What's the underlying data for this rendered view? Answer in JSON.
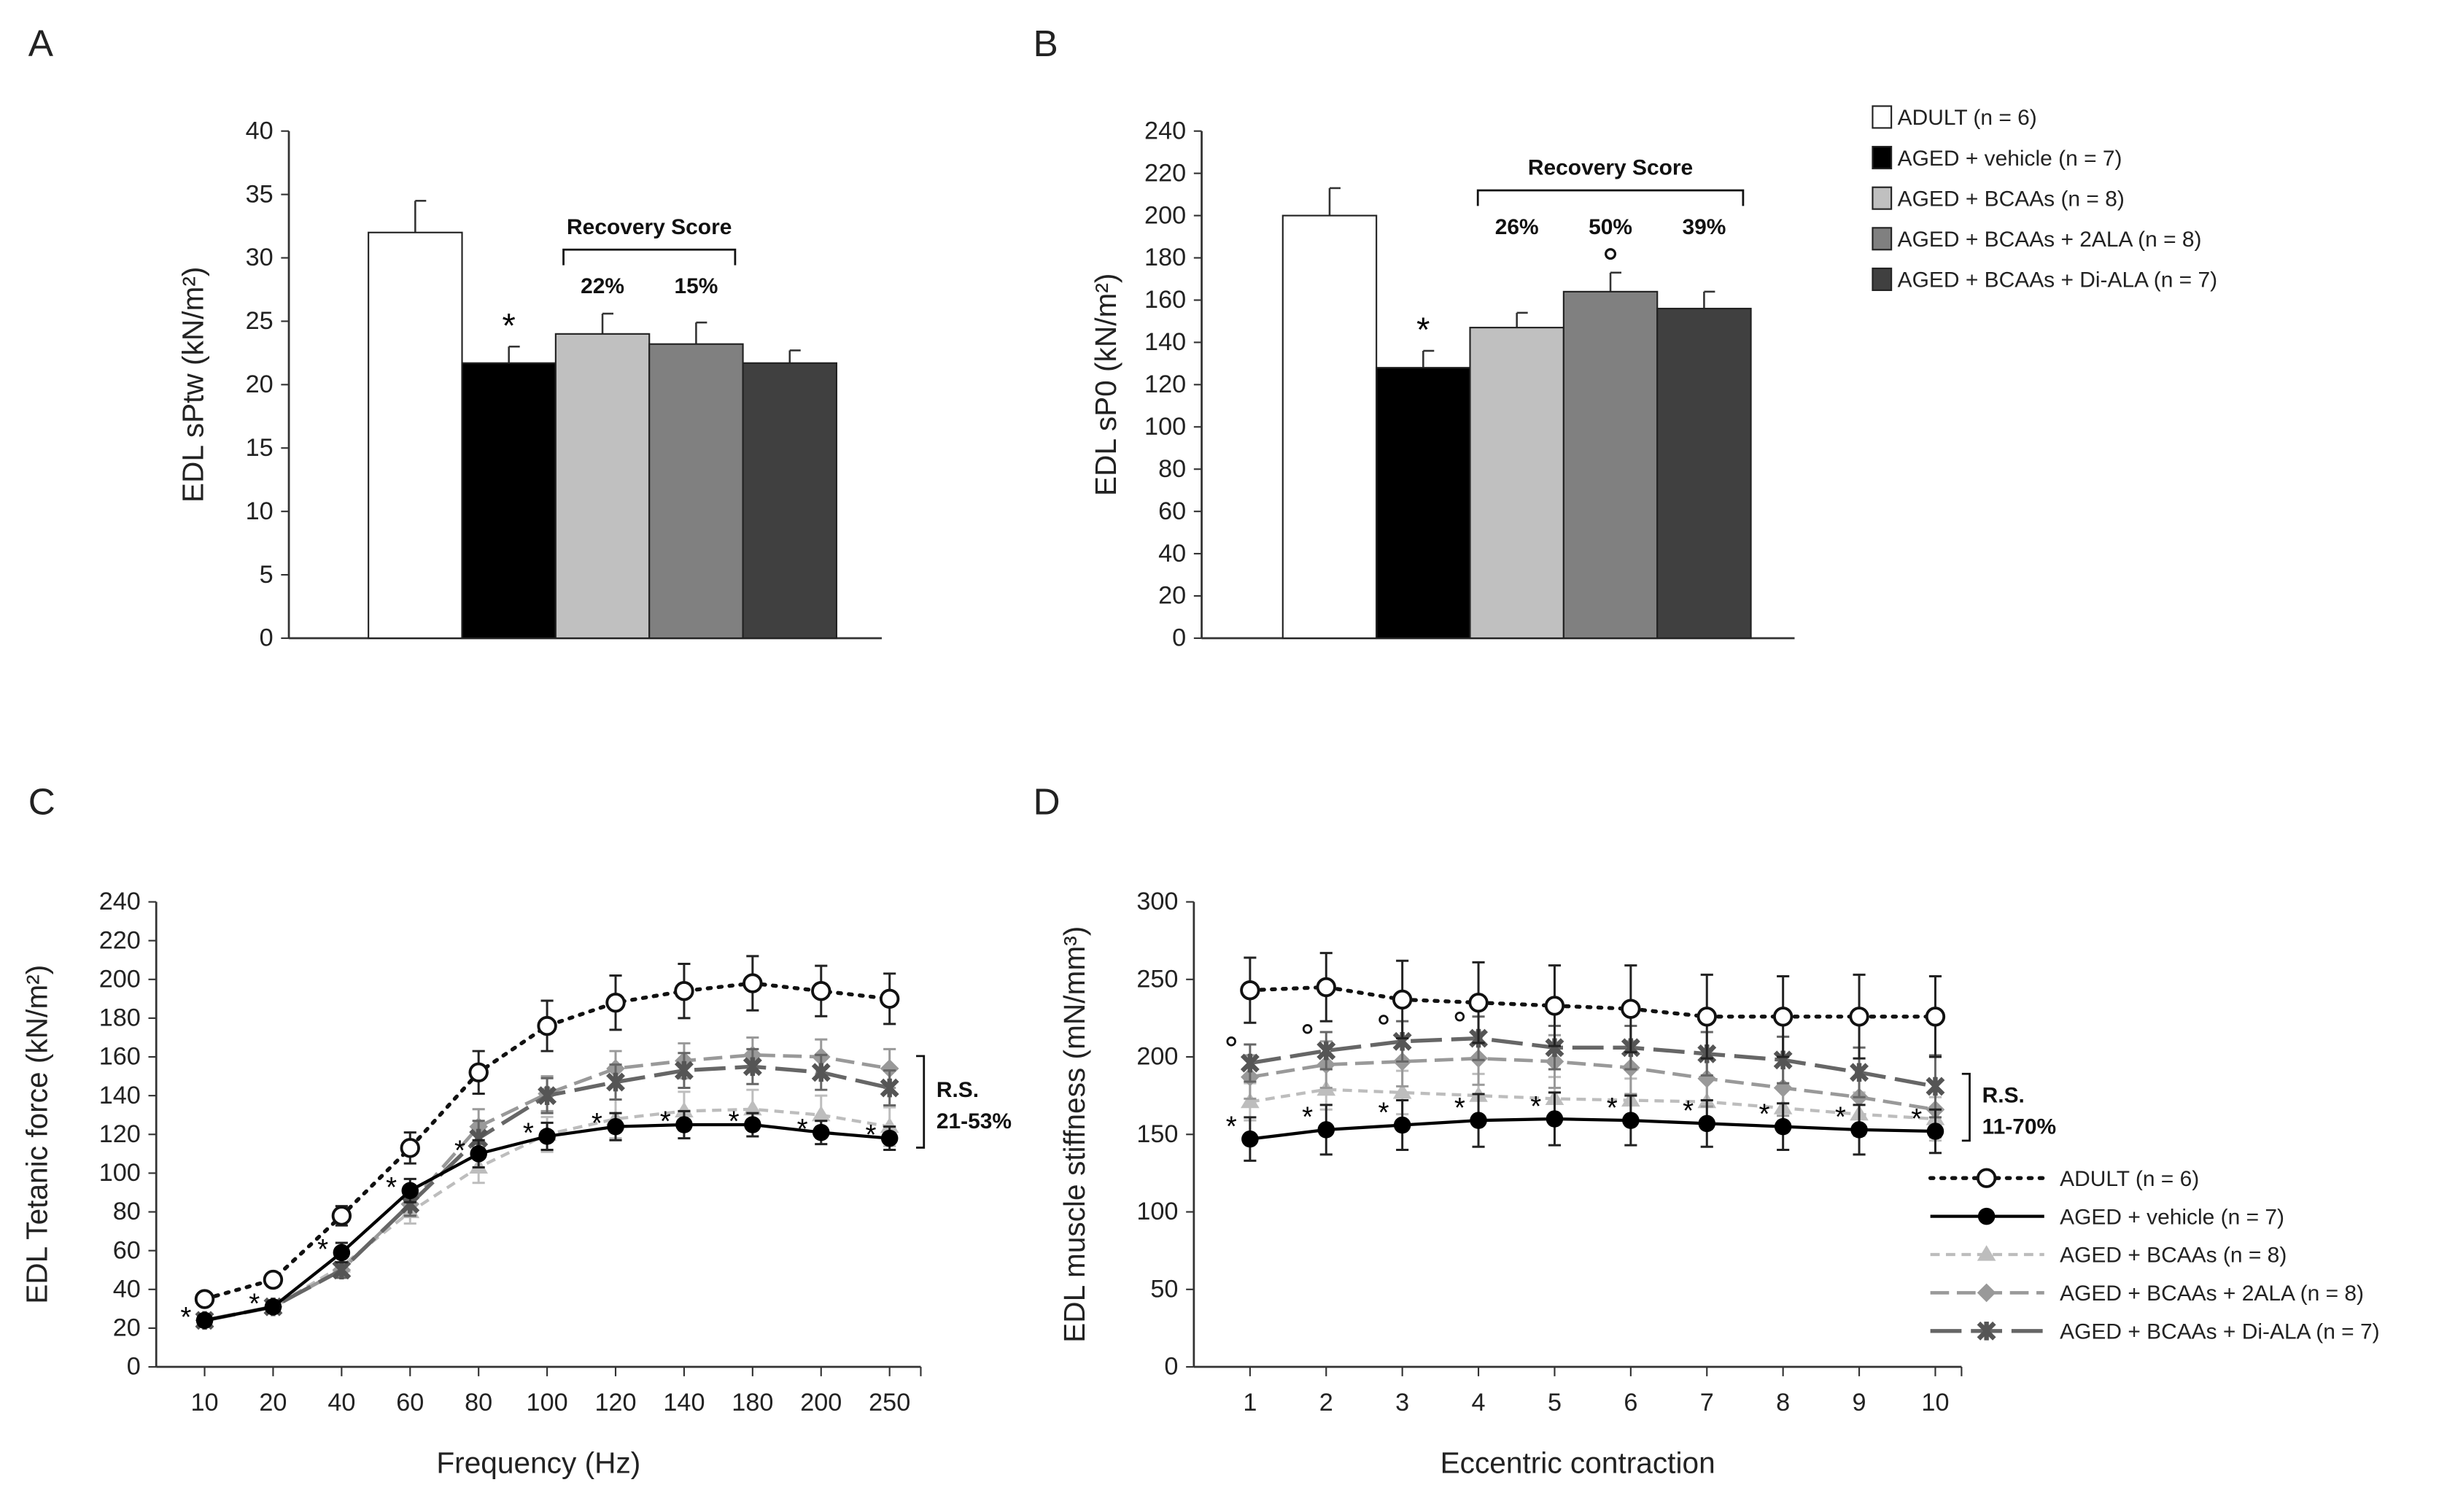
{
  "colors": {
    "adult": "#ffffff",
    "vehicle": "#000000",
    "bcaas": "#c0c0c0",
    "ala2": "#808080",
    "diala": "#404040"
  },
  "legend": [
    "ADULT (n = 6)",
    "AGED + vehicle (n = 7)",
    "AGED + BCAAs (n = 8)",
    "AGED + BCAAs + 2ALA (n = 8)",
    "AGED + BCAAs + Di-ALA (n = 7)"
  ],
  "chart_data": [
    {
      "panel": "A",
      "type": "bar",
      "ylabel": "EDL sPtw (kN/m²)",
      "ylim": [
        0,
        40
      ],
      "yticks": [
        0,
        5,
        10,
        15,
        20,
        25,
        30,
        35,
        40
      ],
      "values": [
        32,
        21.7,
        24,
        23.2,
        21.7
      ],
      "errors": [
        2.5,
        1.3,
        1.6,
        1.7,
        1.0
      ],
      "annotation": {
        "title": "Recovery Score",
        "scores": [
          "22%",
          "15%"
        ],
        "score_bars": [
          2,
          3
        ],
        "star_bars": [
          1
        ],
        "circle_bars": []
      }
    },
    {
      "panel": "B",
      "type": "bar",
      "ylabel": "EDL sP0 (kN/m²)",
      "ylim": [
        0,
        240
      ],
      "yticks": [
        0,
        20,
        40,
        60,
        80,
        100,
        120,
        140,
        160,
        180,
        200,
        220,
        240
      ],
      "values": [
        200,
        128,
        147,
        164,
        156
      ],
      "errors": [
        13,
        8,
        7,
        9,
        8
      ],
      "annotation": {
        "title": "Recovery Score",
        "scores": [
          "26%",
          "50%",
          "39%"
        ],
        "score_bars": [
          2,
          3,
          4
        ],
        "star_bars": [
          1
        ],
        "circle_bars": [
          3
        ]
      }
    },
    {
      "panel": "C",
      "type": "line",
      "xlabel": "Frequency (Hz)",
      "ylabel": "EDL Tetanic force (kN/m²)",
      "ylim": [
        0,
        240
      ],
      "yticks": [
        0,
        20,
        40,
        60,
        80,
        100,
        120,
        140,
        160,
        180,
        200,
        220,
        240
      ],
      "categories": [
        "10",
        "20",
        "40",
        "60",
        "80",
        "100",
        "120",
        "140",
        "180",
        "200",
        "250"
      ],
      "series": [
        {
          "name": "ADULT (n = 6)",
          "values": [
            35,
            45,
            78,
            113,
            152,
            176,
            188,
            194,
            198,
            194,
            190
          ],
          "errors": [
            3,
            3,
            5,
            8,
            11,
            13,
            14,
            14,
            14,
            13,
            13
          ]
        },
        {
          "name": "AGED + vehicle (n = 7)",
          "values": [
            24,
            31,
            59,
            91,
            110,
            119,
            124,
            125,
            125,
            121,
            118
          ],
          "errors": [
            2,
            2,
            5,
            6,
            7,
            7,
            7,
            7,
            6,
            6,
            6
          ]
        },
        {
          "name": "AGED + BCAAs (n = 8)",
          "values": [
            24,
            31,
            52,
            80,
            103,
            120,
            128,
            132,
            133,
            130,
            124
          ],
          "errors": [
            2,
            3,
            5,
            6,
            8,
            9,
            10,
            10,
            10,
            10,
            10
          ]
        },
        {
          "name": "AGED + BCAAs + 2ALA (n = 8)",
          "values": [
            24,
            31,
            50,
            84,
            124,
            141,
            154,
            158,
            161,
            160,
            154
          ],
          "errors": [
            2,
            3,
            4,
            6,
            9,
            9,
            9,
            9,
            9,
            9,
            10
          ]
        },
        {
          "name": "AGED + BCAAs + Di-ALA (n = 7)",
          "values": [
            24,
            31,
            50,
            84,
            118,
            140,
            147,
            153,
            155,
            152,
            144
          ],
          "errors": [
            2,
            3,
            4,
            6,
            9,
            9,
            9,
            9,
            9,
            9,
            9
          ]
        }
      ],
      "annotation": {
        "bracket_label": [
          "R.S.",
          "21-53%"
        ],
        "star_points": [
          0,
          1,
          2,
          3,
          4,
          5,
          6,
          7,
          8,
          9,
          10
        ],
        "circle_points": []
      }
    },
    {
      "panel": "D",
      "type": "line",
      "xlabel": "Eccentric contraction",
      "ylabel": "EDL muscle stiffness (mN/mm³)",
      "ylim": [
        0,
        300
      ],
      "yticks": [
        0,
        50,
        100,
        150,
        200,
        250,
        300
      ],
      "categories": [
        "1",
        "2",
        "3",
        "4",
        "5",
        "6",
        "7",
        "8",
        "9",
        "10"
      ],
      "series": [
        {
          "name": "ADULT (n = 6)",
          "values": [
            243,
            245,
            237,
            235,
            233,
            231,
            226,
            226,
            226,
            226
          ],
          "errors": [
            21,
            22,
            25,
            26,
            26,
            28,
            27,
            26,
            27,
            26
          ]
        },
        {
          "name": "AGED + vehicle (n = 7)",
          "values": [
            147,
            153,
            156,
            159,
            160,
            159,
            157,
            155,
            153,
            152
          ],
          "errors": [
            14,
            16,
            16,
            17,
            17,
            16,
            15,
            15,
            16,
            14
          ]
        },
        {
          "name": "AGED + BCAAs (n = 8)",
          "values": [
            171,
            179,
            177,
            175,
            173,
            172,
            171,
            167,
            163,
            160
          ],
          "errors": [
            12,
            13,
            14,
            14,
            14,
            14,
            14,
            14,
            14,
            14
          ]
        },
        {
          "name": "AGED + BCAAs + 2ALA (n = 8)",
          "values": [
            187,
            195,
            197,
            199,
            197,
            193,
            186,
            180,
            174,
            166
          ],
          "errors": [
            14,
            15,
            16,
            17,
            17,
            17,
            18,
            18,
            18,
            18
          ]
        },
        {
          "name": "AGED + BCAAs + Di-ALA (n = 7)",
          "values": [
            196,
            204,
            210,
            212,
            206,
            206,
            202,
            198,
            190,
            181
          ],
          "errors": [
            12,
            12,
            13,
            14,
            14,
            14,
            14,
            15,
            16,
            20
          ]
        }
      ],
      "annotation": {
        "bracket_label": [
          "R.S.",
          "11-70%"
        ],
        "star_points": [
          0,
          1,
          2,
          3,
          4,
          5,
          6,
          7,
          8,
          9
        ],
        "circle_points": [
          0,
          1,
          2,
          3
        ]
      }
    }
  ]
}
